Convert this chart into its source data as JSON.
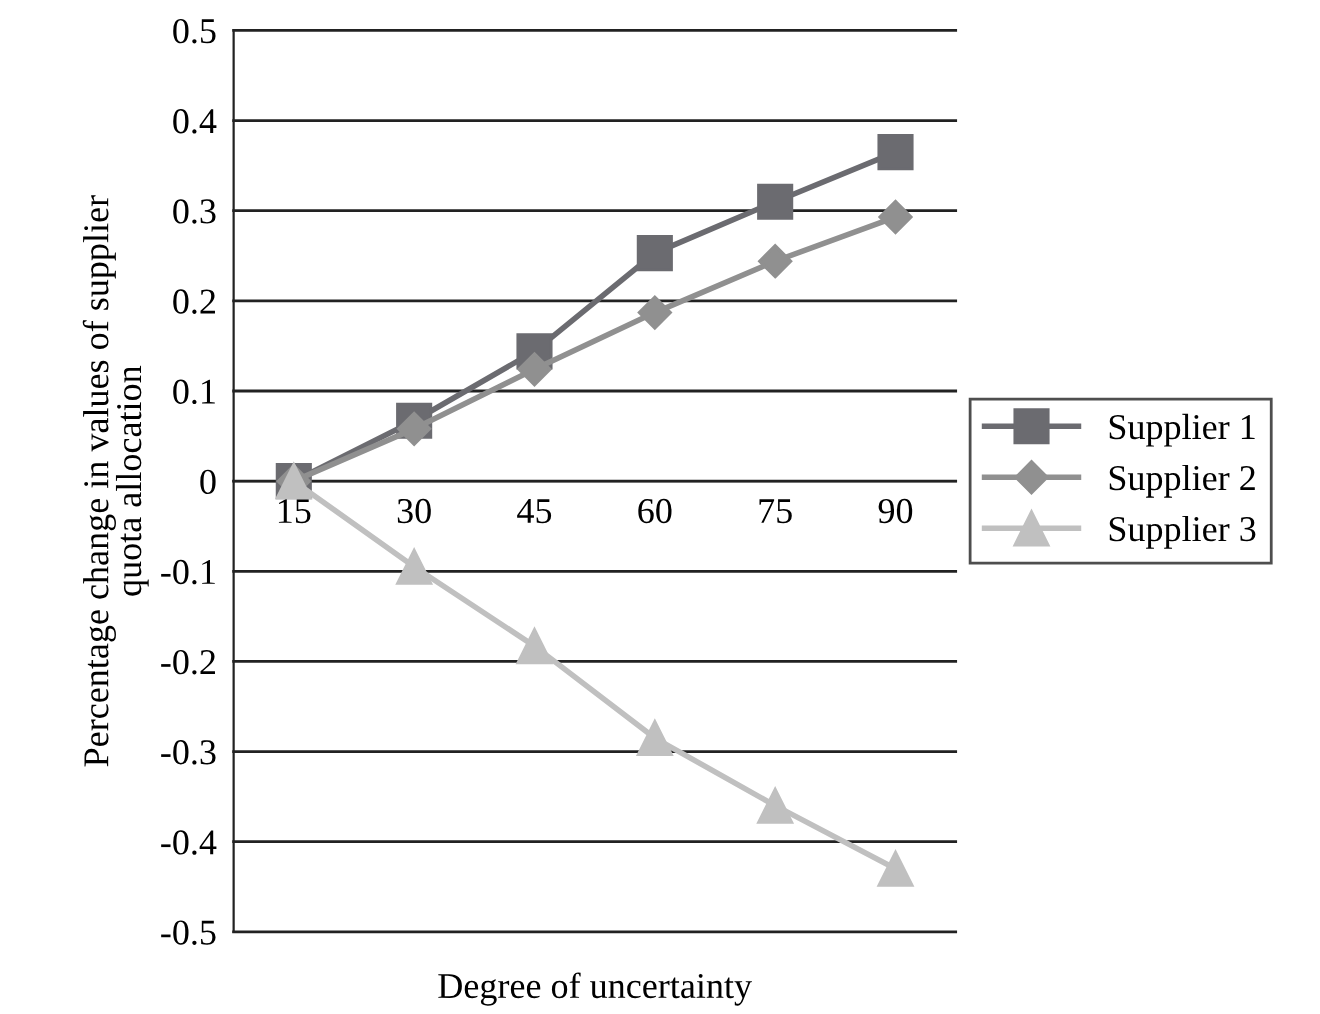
{
  "chart_data": {
    "type": "line",
    "xlabel": "Degree of uncertainty",
    "ylabel": "Percentage change in values of supplier\nquota allocation",
    "categories": [
      "15",
      "30",
      "45",
      "60",
      "75",
      "90"
    ],
    "series": [
      {
        "name": "Supplier 1",
        "color": "#6b6b70",
        "marker": "square",
        "values": [
          0,
          0.067,
          0.144,
          0.253,
          0.31,
          0.365
        ]
      },
      {
        "name": "Supplier 2",
        "color": "#909090",
        "marker": "diamond",
        "values": [
          0,
          0.058,
          0.124,
          0.187,
          0.244,
          0.293
        ]
      },
      {
        "name": "Supplier 3",
        "color": "#c0c0c0",
        "marker": "triangle",
        "values": [
          0,
          -0.095,
          -0.183,
          -0.285,
          -0.36,
          -0.43
        ]
      }
    ],
    "ylim": [
      -0.5,
      0.5
    ],
    "yticks": [
      -0.5,
      -0.4,
      -0.3,
      -0.2,
      -0.1,
      0,
      0.1,
      0.2,
      0.3,
      0.4,
      0.5
    ],
    "grid": "y",
    "legend": "right",
    "line_style": "solid"
  }
}
